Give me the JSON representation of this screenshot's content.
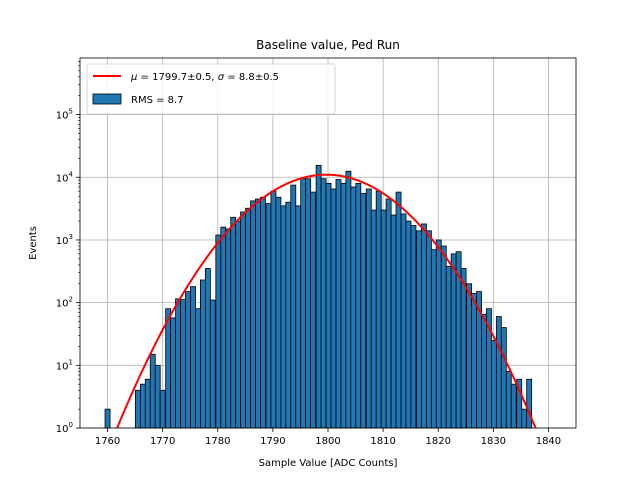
{
  "chart_data": {
    "type": "bar",
    "title": "Baseline value, Ped Run",
    "xlabel": "Sample Value [ADC Counts]",
    "ylabel": "Events",
    "xlim": [
      1755,
      1845
    ],
    "ylim": [
      1,
      800000
    ],
    "yscale": "log",
    "grid": true,
    "legend_placement": "top-left",
    "xticks": [
      "1760",
      "1770",
      "1780",
      "1790",
      "1800",
      "1810",
      "1820",
      "1830",
      "1840"
    ],
    "yticks": [
      {
        "base": "10",
        "exp": "0"
      },
      {
        "base": "10",
        "exp": "1"
      },
      {
        "base": "10",
        "exp": "2"
      },
      {
        "base": "10",
        "exp": "3"
      },
      {
        "base": "10",
        "exp": "4"
      },
      {
        "base": "10",
        "exp": "5"
      }
    ],
    "histogram": {
      "name": "RMS = 8.7",
      "color": "#1f77b4",
      "edge_color": "#000000",
      "bin_width": 0.91,
      "bins": [
        [
          1760.0,
          2
        ],
        [
          1764.5,
          1
        ],
        [
          1765.5,
          4
        ],
        [
          1766.4,
          5
        ],
        [
          1767.3,
          6
        ],
        [
          1768.2,
          15
        ],
        [
          1769.1,
          10
        ],
        [
          1770.0,
          4
        ],
        [
          1771.0,
          80
        ],
        [
          1771.9,
          57
        ],
        [
          1772.8,
          115
        ],
        [
          1773.7,
          112
        ],
        [
          1774.6,
          150
        ],
        [
          1775.5,
          180
        ],
        [
          1776.4,
          80
        ],
        [
          1777.3,
          230
        ],
        [
          1778.2,
          350
        ],
        [
          1779.1,
          110
        ],
        [
          1780.1,
          1200
        ],
        [
          1781.0,
          1600
        ],
        [
          1781.9,
          1500
        ],
        [
          1782.8,
          2300
        ],
        [
          1783.7,
          2000
        ],
        [
          1784.6,
          2800
        ],
        [
          1785.5,
          3200
        ],
        [
          1786.4,
          4200
        ],
        [
          1787.3,
          4500
        ],
        [
          1788.2,
          4800
        ],
        [
          1789.2,
          3800
        ],
        [
          1790.1,
          6000
        ],
        [
          1791.0,
          4800
        ],
        [
          1791.9,
          3500
        ],
        [
          1792.8,
          4000
        ],
        [
          1793.7,
          7500
        ],
        [
          1794.6,
          3500
        ],
        [
          1795.5,
          9500
        ],
        [
          1796.4,
          9500
        ],
        [
          1797.3,
          5800
        ],
        [
          1798.3,
          15500
        ],
        [
          1799.2,
          9500
        ],
        [
          1800.1,
          8000
        ],
        [
          1801.0,
          6500
        ],
        [
          1801.9,
          9200
        ],
        [
          1802.8,
          8000
        ],
        [
          1803.7,
          12500
        ],
        [
          1804.6,
          7000
        ],
        [
          1805.5,
          8000
        ],
        [
          1806.4,
          5500
        ],
        [
          1807.4,
          6500
        ],
        [
          1808.3,
          3000
        ],
        [
          1809.2,
          6000
        ],
        [
          1810.1,
          3000
        ],
        [
          1811.0,
          4500
        ],
        [
          1811.9,
          2500
        ],
        [
          1812.8,
          5800
        ],
        [
          1813.7,
          2600
        ],
        [
          1814.6,
          2000
        ],
        [
          1815.5,
          1700
        ],
        [
          1816.5,
          1400
        ],
        [
          1817.4,
          1800
        ],
        [
          1818.3,
          1400
        ],
        [
          1819.2,
          700
        ],
        [
          1820.1,
          1000
        ],
        [
          1821.0,
          800
        ],
        [
          1821.9,
          380
        ],
        [
          1822.8,
          600
        ],
        [
          1823.7,
          650
        ],
        [
          1824.6,
          350
        ],
        [
          1825.6,
          200
        ],
        [
          1826.5,
          140
        ],
        [
          1827.4,
          150
        ],
        [
          1828.3,
          65
        ],
        [
          1829.2,
          80
        ],
        [
          1830.1,
          25
        ],
        [
          1831.0,
          60
        ],
        [
          1831.9,
          40
        ],
        [
          1832.8,
          8
        ],
        [
          1833.7,
          5
        ],
        [
          1834.7,
          6
        ],
        [
          1835.6,
          2
        ],
        [
          1836.5,
          6
        ]
      ]
    },
    "fit": {
      "name": "μ = 1799.7±0.5, σ = 8.8±0.5",
      "color": "#ff0000",
      "mu": 1799.7,
      "sigma": 8.8,
      "amplitude": 11000
    },
    "legend": [
      {
        "kind": "line",
        "label_parts": [
          "μ",
          " = 1799.7±0.5, ",
          "σ",
          " = 8.8±0.5"
        ]
      },
      {
        "kind": "patch",
        "label": "RMS = 8.7"
      }
    ]
  }
}
